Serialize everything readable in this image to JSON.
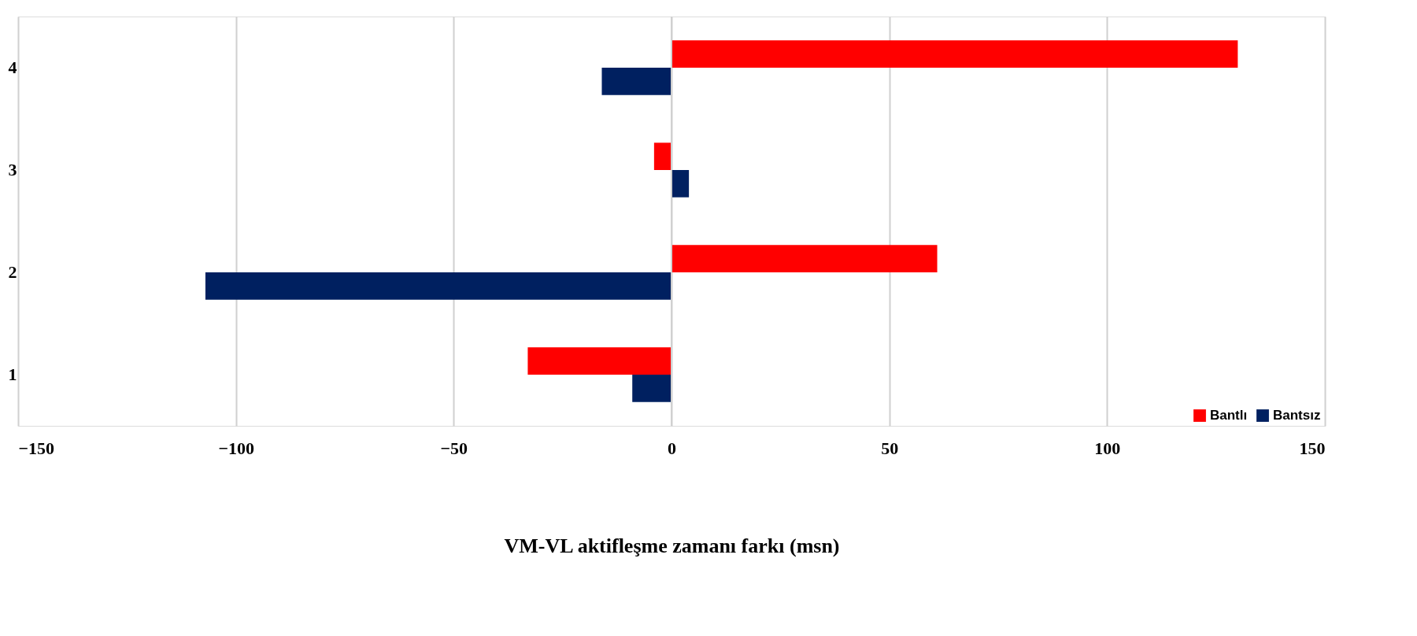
{
  "chart_data": {
    "type": "bar",
    "orientation": "horizontal",
    "xlabel": "VM-VL aktifleşme zamanı farkı (msn)",
    "categories": [
      "4",
      "3",
      "2",
      "1"
    ],
    "series": [
      {
        "name": "Bantlı",
        "color": "#ff0000",
        "values": [
          130,
          -4,
          61,
          -33
        ]
      },
      {
        "name": "Bantsız",
        "color": "#002060",
        "values": [
          -16,
          4,
          -107,
          -9
        ]
      }
    ],
    "xlim": [
      -150,
      150
    ],
    "xticks": [
      -150,
      -100,
      -50,
      0,
      50,
      100,
      150
    ],
    "grid": "x",
    "legend": "bottom right"
  }
}
